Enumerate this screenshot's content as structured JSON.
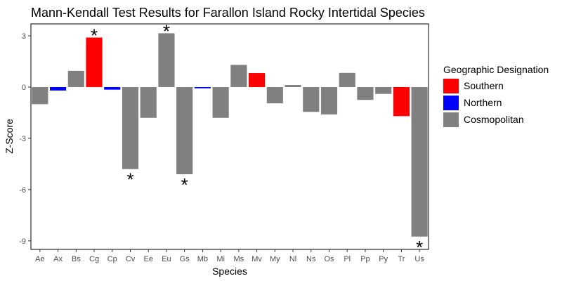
{
  "chart_data": {
    "type": "bar",
    "title": "Mann-Kendall Test Results for Farallon Island Rocky Intertidal Species",
    "xlabel": "Species",
    "ylabel": "Z-Score",
    "ylim": [
      -9.5,
      3.7
    ],
    "yticks": [
      3,
      0,
      -3,
      -6,
      -9
    ],
    "grid": false,
    "categories": [
      "Ae",
      "Ax",
      "Bs",
      "Cg",
      "Cp",
      "Cv",
      "Ee",
      "Eu",
      "Gs",
      "Mb",
      "Mi",
      "Ms",
      "Mv",
      "My",
      "Nl",
      "Ns",
      "Os",
      "Pl",
      "Pp",
      "Py",
      "Tr",
      "Us"
    ],
    "values": [
      -1.0,
      -0.2,
      0.95,
      2.9,
      -0.15,
      -4.8,
      -1.8,
      3.15,
      -5.1,
      -0.07,
      -1.8,
      1.3,
      0.82,
      -0.95,
      0.12,
      -1.45,
      -1.6,
      0.83,
      -0.75,
      -0.4,
      -1.7,
      -8.75
    ],
    "groups": [
      "Cosmopolitan",
      "Northern",
      "Cosmopolitan",
      "Southern",
      "Northern",
      "Cosmopolitan",
      "Cosmopolitan",
      "Cosmopolitan",
      "Cosmopolitan",
      "Northern",
      "Cosmopolitan",
      "Cosmopolitan",
      "Southern",
      "Cosmopolitan",
      "Cosmopolitan",
      "Cosmopolitan",
      "Cosmopolitan",
      "Cosmopolitan",
      "Cosmopolitan",
      "Cosmopolitan",
      "Southern",
      "Cosmopolitan"
    ],
    "significant": [
      "Cg",
      "Cv",
      "Eu",
      "Gs",
      "Us"
    ],
    "significance_marker": "*",
    "legend": {
      "title": "Geographic Designation",
      "placement": "right",
      "entries": [
        {
          "name": "Southern",
          "color": "#ff0000"
        },
        {
          "name": "Northern",
          "color": "#0000ff"
        },
        {
          "name": "Cosmopolitan",
          "color": "#808080"
        }
      ]
    }
  }
}
